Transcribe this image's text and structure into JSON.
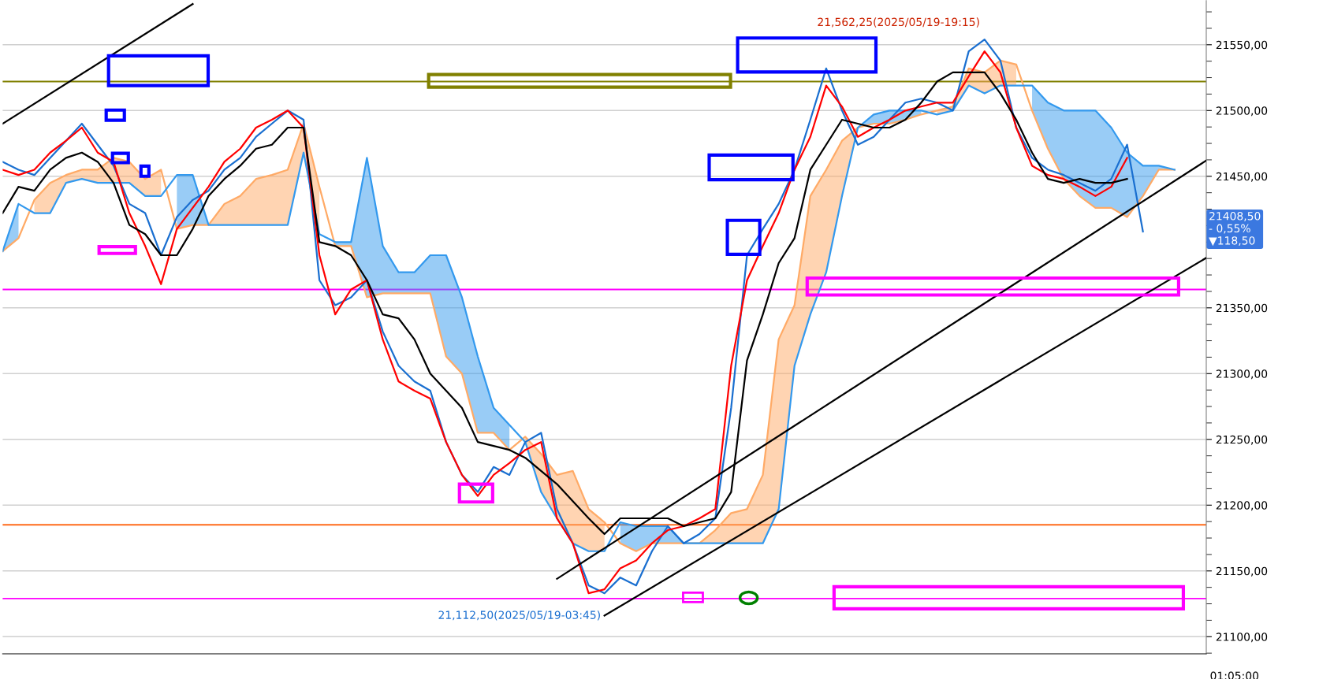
{
  "chart_data": {
    "type": "line",
    "categories": [
      null,
      null,
      null,
      null,
      null,
      null,
      null,
      null,
      null,
      null,
      null,
      null,
      null,
      null,
      null,
      null,
      null,
      null,
      null,
      null,
      null,
      null,
      null,
      null,
      null,
      null,
      null,
      null,
      null,
      null,
      null,
      null,
      null,
      null,
      null,
      null,
      null,
      null,
      null,
      null,
      null,
      null,
      null,
      null,
      null,
      null,
      null,
      null,
      null,
      null,
      null,
      null,
      null,
      null,
      null,
      null,
      null,
      null,
      null,
      null,
      null,
      null,
      null,
      null,
      null,
      null,
      null,
      null,
      null,
      null,
      null,
      null,
      null,
      null,
      null,
      null,
      null
    ],
    "series": [
      {
        "type": "line",
        "color": "#ffaa66",
        "values": [
          21393,
          21403,
          21432,
          21445,
          21451,
          21455,
          21455,
          21464,
          21461,
          21448,
          21455,
          21410,
          21413,
          21413,
          21429,
          21435,
          21448,
          21451,
          21455,
          21490,
          21442,
          21397,
          21397,
          21358,
          21361,
          21361,
          21361,
          21361,
          21313,
          21300,
          21255,
          21255,
          21242,
          21252,
          21239,
          21223,
          21226,
          21197,
          21187,
          21171,
          21165,
          21171,
          21171,
          21171,
          21171,
          21181,
          21194,
          21197,
          21223,
          21326,
          21352,
          21435,
          21455,
          21477,
          21487,
          21490,
          21490,
          21493,
          21497,
          21500,
          21503,
          21532,
          21529,
          21538,
          21535,
          21500,
          21471,
          21448,
          21435,
          21426,
          21426,
          21419,
          21435,
          21455,
          21455,
          null,
          null
        ],
        "lower": [
          null,
          null,
          21422,
          21422,
          21445,
          21448,
          21445,
          21445,
          21445,
          21435,
          21435,
          null,
          null,
          21413,
          21413,
          21413,
          21413,
          21413,
          21413,
          21468,
          21406,
          null,
          null,
          null,
          null,
          null,
          null,
          null,
          null,
          null,
          null,
          null,
          null,
          21248,
          21210,
          21190,
          21171,
          21165,
          21165,
          null,
          null,
          null,
          null,
          21171,
          21171,
          21171,
          21171,
          21171,
          21171,
          21197,
          21306,
          21345,
          21377,
          21435,
          21487,
          null,
          null,
          null,
          null,
          21497,
          21500,
          21519,
          21513,
          21519,
          21519,
          null,
          null,
          null,
          null,
          null,
          null,
          null,
          null,
          null,
          null,
          null,
          null
        ],
        "upper": [
          null,
          null,
          21432,
          21445,
          21451,
          21455,
          21455,
          21464,
          21461,
          21448,
          21455,
          null,
          null,
          21413,
          21429,
          21435,
          21448,
          21451,
          21455,
          21490,
          21442,
          null,
          null,
          null,
          null,
          null,
          null,
          null,
          null,
          null,
          null,
          null,
          null,
          21252,
          21239,
          21223,
          21226,
          21197,
          21187,
          null,
          null,
          null,
          null,
          21171,
          21171,
          21181,
          21194,
          21197,
          21223,
          21326,
          21352,
          21435,
          21455,
          21477,
          21487,
          null,
          null,
          null,
          null,
          21500,
          21503,
          21532,
          21529,
          21538,
          21535,
          null,
          null,
          null,
          null,
          null,
          null,
          null,
          null,
          null,
          null,
          null,
          null
        ]
      },
      {
        "type": "line",
        "color": "#3399ee",
        "values": [
          21393,
          21429,
          21422,
          21422,
          21445,
          21448,
          21445,
          21445,
          21445,
          21435,
          21435,
          21451,
          21451,
          21413,
          21413,
          21413,
          21413,
          21413,
          21413,
          21468,
          21406,
          21400,
          21400,
          21464,
          21397,
          21377,
          21377,
          21390,
          21390,
          21358,
          21313,
          21274,
          21261,
          21248,
          21210,
          21190,
          21171,
          21165,
          21165,
          21187,
          21184,
          21184,
          21184,
          21171,
          21171,
          21171,
          21171,
          21171,
          21171,
          21197,
          21306,
          21345,
          21377,
          21435,
          21487,
          21497,
          21500,
          21500,
          21500,
          21497,
          21500,
          21519,
          21513,
          21519,
          21519,
          21519,
          21506,
          21500,
          21500,
          21500,
          21487,
          21468,
          21458,
          21458,
          21455,
          null,
          null
        ],
        "lower": [
          21393,
          21403,
          null,
          null,
          null,
          null,
          null,
          null,
          null,
          null,
          null,
          21410,
          21413,
          21413,
          null,
          null,
          null,
          null,
          null,
          null,
          null,
          21397,
          21397,
          21358,
          21361,
          21361,
          21361,
          21361,
          21313,
          21300,
          21255,
          21255,
          21242,
          null,
          null,
          null,
          null,
          null,
          null,
          21171,
          21165,
          21171,
          21171,
          21171,
          21171,
          null,
          null,
          null,
          null,
          null,
          null,
          null,
          null,
          null,
          21487,
          21490,
          21490,
          21493,
          21497,
          null,
          null,
          null,
          null,
          null,
          null,
          21500,
          21471,
          21448,
          21435,
          21426,
          21426,
          21419,
          21435,
          21455,
          21455,
          null,
          null
        ],
        "upper": [
          21393,
          21429,
          null,
          null,
          null,
          null,
          null,
          null,
          null,
          null,
          null,
          21451,
          21451,
          21413,
          null,
          null,
          null,
          null,
          null,
          null,
          null,
          21400,
          21400,
          21464,
          21397,
          21377,
          21377,
          21390,
          21390,
          21358,
          21313,
          21274,
          21261,
          null,
          null,
          null,
          null,
          null,
          null,
          21187,
          21184,
          21184,
          21184,
          21171,
          21171,
          null,
          null,
          null,
          null,
          null,
          null,
          null,
          null,
          null,
          21487,
          21497,
          21500,
          21500,
          21500,
          null,
          null,
          null,
          null,
          null,
          null,
          21519,
          21506,
          21500,
          21500,
          21500,
          21487,
          21468,
          21458,
          21458,
          21455,
          null,
          null
        ]
      },
      {
        "color": "#1a6fd0",
        "values": [
          21461,
          21455,
          21451,
          21464,
          21477,
          21490,
          21474,
          21458,
          21429,
          21422,
          21390,
          21419,
          21432,
          21439,
          21455,
          21464,
          21480,
          21490,
          21500,
          21493,
          21371,
          21352,
          21358,
          21371,
          21332,
          21306,
          21294,
          21287,
          21248,
          21223,
          21210,
          21229,
          21223,
          21248,
          21255,
          21197,
          21171,
          21139,
          21133,
          21145,
          21139,
          21165,
          21184,
          21171,
          21178,
          21190,
          21274,
          21390,
          21410,
          21429,
          21455,
          21493,
          21532,
          21500,
          21474,
          21480,
          21493,
          21506,
          21509,
          21506,
          21500,
          21545,
          21554,
          21538,
          21487,
          21464,
          21455,
          21451,
          21445,
          21439,
          21448,
          21474,
          21408,
          null,
          null,
          null,
          null
        ]
      },
      {
        "color": "#ff0000",
        "values": [
          21455,
          21451,
          21455,
          21468,
          21477,
          21487,
          21468,
          21461,
          21422,
          21397,
          21368,
          21410,
          21426,
          21442,
          21461,
          21471,
          21487,
          21493,
          21500,
          21487,
          21390,
          21345,
          21364,
          21371,
          21326,
          21294,
          21287,
          21281,
          21248,
          21223,
          21207,
          21223,
          21232,
          21242,
          21248,
          21190,
          21171,
          21133,
          21136,
          21152,
          21158,
          21171,
          21181,
          21184,
          21190,
          21197,
          21306,
          21371,
          21397,
          21422,
          21455,
          21480,
          21519,
          21503,
          21480,
          21487,
          21493,
          21500,
          21503,
          21506,
          21506,
          21526,
          21545,
          21529,
          21487,
          21458,
          21451,
          21448,
          21442,
          21435,
          21442,
          21464,
          null,
          null,
          null,
          null,
          null
        ]
      },
      {
        "color": "#000000",
        "values": [
          21422,
          21442,
          21439,
          21455,
          21464,
          21468,
          21461,
          21445,
          21413,
          21406,
          21390,
          21390,
          21410,
          21435,
          21448,
          21458,
          21471,
          21474,
          21487,
          21487,
          21400,
          21397,
          21390,
          21371,
          21345,
          21342,
          21326,
          21300,
          21287,
          21274,
          21248,
          21245,
          21242,
          21236,
          21226,
          21216,
          21203,
          21190,
          21178,
          21190,
          21190,
          21190,
          21190,
          21184,
          21187,
          21190,
          21210,
          21310,
          21345,
          21384,
          21403,
          21455,
          21474,
          21493,
          21490,
          21487,
          21487,
          21493,
          21506,
          21522,
          21529,
          21529,
          21529,
          21513,
          21493,
          21468,
          21448,
          21445,
          21448,
          21445,
          21445,
          21448,
          null,
          null,
          null,
          null,
          null
        ]
      },
      {
        "color": "#000000",
        "values": [
          21490,
          null,
          null,
          null,
          null,
          null,
          null,
          null,
          null,
          null,
          null,
          null,
          21581,
          null,
          null,
          null,
          null,
          null,
          null,
          null,
          null,
          null,
          null,
          null,
          null,
          null,
          null,
          null,
          null,
          null,
          null,
          null,
          null,
          null,
          null,
          null,
          null,
          null,
          null,
          null,
          null,
          null,
          null,
          null,
          null,
          null,
          null,
          null,
          null,
          null,
          null,
          null,
          null,
          null,
          null,
          null,
          null,
          null,
          null,
          null,
          null,
          null,
          null,
          null,
          null,
          null,
          null,
          null,
          null,
          null,
          null,
          null,
          null,
          null,
          null,
          null,
          null
        ]
      },
      {
        "color": "#000000",
        "values": [
          null,
          null,
          null,
          null,
          null,
          null,
          null,
          null,
          null,
          null,
          null,
          null,
          null,
          null,
          null,
          null,
          null,
          null,
          null,
          null,
          null,
          null,
          null,
          null,
          null,
          null,
          null,
          null,
          null,
          null,
          null,
          null,
          null,
          null,
          null,
          21144,
          null,
          null,
          null,
          null,
          null,
          null,
          null,
          null,
          null,
          null,
          null,
          null,
          null,
          null,
          null,
          null,
          null,
          null,
          null,
          null,
          null,
          null,
          null,
          null,
          null,
          null,
          null,
          null,
          null,
          null,
          null,
          null,
          null,
          null,
          null,
          null,
          null,
          null,
          null,
          null,
          21462
        ]
      },
      {
        "color": "#000000",
        "values": [
          null,
          null,
          null,
          null,
          null,
          null,
          null,
          null,
          null,
          null,
          null,
          null,
          null,
          null,
          null,
          null,
          null,
          null,
          null,
          null,
          null,
          null,
          null,
          null,
          null,
          null,
          null,
          null,
          null,
          null,
          null,
          null,
          null,
          null,
          null,
          null,
          null,
          null,
          21116,
          null,
          null,
          null,
          null,
          null,
          null,
          null,
          null,
          null,
          null,
          null,
          null,
          null,
          null,
          null,
          null,
          null,
          null,
          null,
          null,
          null,
          null,
          null,
          null,
          null,
          null,
          null,
          null,
          null,
          null,
          null,
          null,
          null,
          null,
          null,
          null,
          null,
          21388
        ]
      }
    ],
    "ylim": [
      21087,
      21583.5
    ],
    "yticks": [
      {
        "value": 21087.5,
        "label": null
      },
      {
        "value": 21100,
        "label": "21100,00"
      },
      {
        "value": 21112.5,
        "label": null
      },
      {
        "value": 21125,
        "label": null
      },
      {
        "value": 21137.5,
        "label": null
      },
      {
        "value": 21150,
        "label": "21150,00"
      },
      {
        "value": 21162.5,
        "label": null
      },
      {
        "value": 21175,
        "label": null
      },
      {
        "value": 21187.5,
        "label": null
      },
      {
        "value": 21200,
        "label": "21200,00"
      },
      {
        "value": 21212.5,
        "label": null
      },
      {
        "value": 21225,
        "label": null
      },
      {
        "value": 21237.5,
        "label": null
      },
      {
        "value": 21250,
        "label": "21250,00"
      },
      {
        "value": 21262.5,
        "label": null
      },
      {
        "value": 21275,
        "label": null
      },
      {
        "value": 21287.5,
        "label": null
      },
      {
        "value": 21300,
        "label": "21300,00"
      },
      {
        "value": 21312.5,
        "label": null
      },
      {
        "value": 21325,
        "label": null
      },
      {
        "value": 21337.5,
        "label": null
      },
      {
        "value": 21350,
        "label": "21350,00"
      },
      {
        "value": 21362.5,
        "label": null
      },
      {
        "value": 21375,
        "label": null
      },
      {
        "value": 21387.5,
        "label": null
      },
      {
        "value": 21400,
        "label": null
      },
      {
        "value": 21412.5,
        "label": null
      },
      {
        "value": 21425,
        "label": null
      },
      {
        "value": 21437.5,
        "label": null
      },
      {
        "value": 21450,
        "label": "21450,00"
      },
      {
        "value": 21462.5,
        "label": null
      },
      {
        "value": 21475,
        "label": null
      },
      {
        "value": 21487.5,
        "label": null
      },
      {
        "value": 21500,
        "label": "21500,00"
      },
      {
        "value": 21512.5,
        "label": null
      },
      {
        "value": 21525,
        "label": null
      },
      {
        "value": 21537.5,
        "label": null
      },
      {
        "value": 21550,
        "label": "21550,00"
      },
      {
        "value": 21562.5,
        "label": null
      },
      {
        "value": 21575,
        "label": null
      }
    ],
    "grid": "y",
    "ref_lines": [
      {
        "axis": "y",
        "value": 21522,
        "color": "#808000"
      },
      {
        "axis": "y",
        "value": 21364,
        "color": "#ff00ff"
      },
      {
        "axis": "y",
        "value": 21185,
        "color": "#ff6a1a"
      },
      {
        "axis": "y",
        "value": 21129,
        "color": "#ff00ff"
      }
    ],
    "annotations": [
      "21,562,25(2025/05/19-19:15)",
      "21,112,50(2025/05/19-03:45)",
      "21408,50\n- 0,55%\n▼118,50",
      "01:05:00"
    ]
  }
}
